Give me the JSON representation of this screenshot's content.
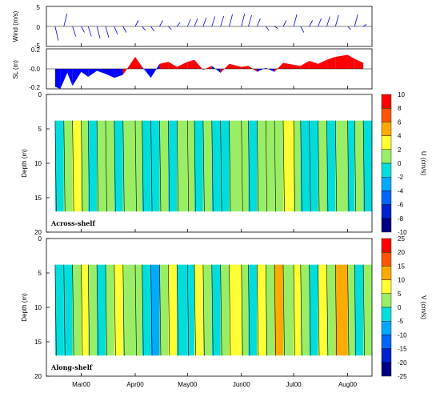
{
  "chart_data": [
    {
      "type": "line",
      "panel": "wind",
      "ylabel": "Wind (m/s)",
      "ylim": [
        -5,
        5
      ],
      "yticks": [
        "5",
        "0",
        "-5"
      ],
      "series_color": "#0000ff",
      "x": [
        "Feb15",
        "Feb20",
        "Feb25",
        "Mar01",
        "Mar05",
        "Mar10",
        "Mar15",
        "Mar20",
        "Mar25",
        "Apr01",
        "Apr05",
        "Apr10",
        "Apr15",
        "Apr20",
        "Apr25",
        "May01",
        "May05",
        "May10",
        "May15",
        "May20",
        "May25",
        "Jun01",
        "Jun05",
        "Jun10",
        "Jun15",
        "Jun20",
        "Jun25",
        "Jul01",
        "Jul05",
        "Jul10",
        "Jul15",
        "Jul20",
        "Jul25",
        "Aug01",
        "Aug05",
        "Aug10"
      ],
      "values": [
        -3.5,
        3.2,
        -2.5,
        -1.5,
        -2.5,
        -3.0,
        -2.8,
        -2.0,
        -1.5,
        1.5,
        -1.0,
        -1.2,
        1.5,
        -0.8,
        1.0,
        1.8,
        2.0,
        2.2,
        2.5,
        2.6,
        3.0,
        3.2,
        2.8,
        2.0,
        -1.0,
        -0.5,
        1.5,
        3.0,
        -1.5,
        1.5,
        2.0,
        2.5,
        2.8,
        -0.8,
        3.0,
        0.5
      ]
    },
    {
      "type": "area",
      "panel": "sea-level",
      "ylabel": "SL (m)",
      "ylim": [
        -0.2,
        0.2
      ],
      "yticks": [
        "0.2",
        "-0.0",
        "-0.2"
      ],
      "positive_color": "#ff0000",
      "negative_color": "#0000ff",
      "x": [
        "Feb15",
        "Feb18",
        "Feb22",
        "Feb25",
        "Mar01",
        "Mar05",
        "Mar10",
        "Mar15",
        "Mar20",
        "Mar25",
        "Apr01",
        "Apr05",
        "Apr10",
        "Apr15",
        "Apr20",
        "Apr25",
        "May01",
        "May05",
        "May10",
        "May15",
        "May20",
        "May25",
        "Jun01",
        "Jun05",
        "Jun10",
        "Jun15",
        "Jun20",
        "Jun25",
        "Jul01",
        "Jul05",
        "Jul10",
        "Jul15",
        "Jul20",
        "Jul25",
        "Aug01",
        "Aug05",
        "Aug10"
      ],
      "values": [
        -0.18,
        -0.2,
        -0.04,
        -0.17,
        -0.03,
        -0.08,
        -0.02,
        -0.05,
        -0.09,
        -0.06,
        0.12,
        0.02,
        -0.09,
        0.05,
        0.07,
        0.02,
        0.07,
        0.09,
        -0.01,
        0.03,
        -0.04,
        0.05,
        0.02,
        0.03,
        -0.03,
        0.01,
        -0.03,
        0.06,
        0.04,
        0.03,
        0.08,
        0.05,
        0.09,
        0.12,
        0.14,
        0.1,
        0.06
      ]
    },
    {
      "type": "heatmap",
      "panel": "across-shelf",
      "annotation": "Across-shelf",
      "ylabel": "Depth (m)",
      "ylim": [
        0,
        20
      ],
      "data_depth_range": [
        3.8,
        17
      ],
      "yticks": [
        "0",
        "5",
        "10",
        "15",
        "20"
      ],
      "colorbar_label": "U (cm/s)",
      "colorbar_ticks": [
        "10",
        "8",
        "6",
        "4",
        "2",
        "0",
        "-2",
        "-4",
        "-6",
        "-8",
        "-10"
      ],
      "colorbar_colors": [
        "#ff0000",
        "#ff5500",
        "#ffaa00",
        "#ffff33",
        "#99ee66",
        "#00dddd",
        "#00aaff",
        "#0066ff",
        "#0022cc",
        "#000080"
      ],
      "bands_x": [
        "Feb15",
        "Feb20",
        "Feb25",
        "Mar01",
        "Mar05",
        "Mar10",
        "Mar15",
        "Mar20",
        "Mar25",
        "Apr01",
        "Apr05",
        "Apr10",
        "Apr15",
        "Apr20",
        "Apr25",
        "May01",
        "May05",
        "May10",
        "May15",
        "May20",
        "May25",
        "Jun01",
        "Jun05",
        "Jun10",
        "Jun15",
        "Jun20",
        "Jun25",
        "Jul01",
        "Jul05",
        "Jul10",
        "Jul15",
        "Jul20",
        "Jul25",
        "Aug01",
        "Aug05",
        "Aug10"
      ],
      "bands_value": [
        -1,
        1,
        3,
        1,
        -1,
        1,
        0.5,
        -1,
        1,
        1.5,
        -1,
        -1,
        1,
        -1,
        1,
        1,
        -1,
        1,
        -1,
        -1,
        1,
        1,
        -1,
        1,
        0.5,
        1,
        3,
        1,
        -1,
        -1,
        1,
        -1,
        1,
        -1,
        1,
        -1
      ]
    },
    {
      "type": "heatmap",
      "panel": "along-shelf",
      "annotation": "Along-shelf",
      "ylabel": "Depth (m)",
      "ylim": [
        0,
        20
      ],
      "data_depth_range": [
        3.8,
        17
      ],
      "yticks": [
        "0",
        "5",
        "10",
        "15",
        "20"
      ],
      "colorbar_label": "V (cm/s)",
      "colorbar_ticks": [
        "25",
        "20",
        "15",
        "10",
        "5",
        "0",
        "-5",
        "-10",
        "-15",
        "-20",
        "-25"
      ],
      "colorbar_colors": [
        "#ff0000",
        "#ff5500",
        "#ffaa00",
        "#ffff33",
        "#99ee66",
        "#00dddd",
        "#00aaff",
        "#0066ff",
        "#0022cc",
        "#000080"
      ],
      "bands_x": [
        "Feb15",
        "Feb20",
        "Feb25",
        "Mar01",
        "Mar05",
        "Mar10",
        "Mar15",
        "Mar20",
        "Mar25",
        "Apr01",
        "Apr05",
        "Apr10",
        "Apr15",
        "Apr20",
        "Apr25",
        "May01",
        "May05",
        "May10",
        "May15",
        "May20",
        "May25",
        "Jun01",
        "Jun05",
        "Jun10",
        "Jun15",
        "Jun20",
        "Jun25",
        "Jul01",
        "Jul05",
        "Jul10",
        "Jul15",
        "Jul20",
        "Jul25",
        "Aug01",
        "Aug05",
        "Aug10"
      ],
      "bands_value": [
        -3,
        -3,
        3,
        7,
        3,
        -3,
        3,
        7,
        3,
        3,
        -3,
        -6,
        3,
        7,
        -3,
        -3,
        7,
        3,
        -3,
        3,
        7,
        3,
        -3,
        7,
        3,
        12,
        3,
        7,
        3,
        -3,
        7,
        3,
        12,
        3,
        -3,
        3
      ]
    }
  ],
  "time_axis": {
    "range": [
      "2000-02-10",
      "2000-08-15"
    ],
    "ticks": [
      {
        "label": "Mar00",
        "date": "2000-03-01"
      },
      {
        "label": "Apr00",
        "date": "2000-04-01"
      },
      {
        "label": "May00",
        "date": "2000-05-01"
      },
      {
        "label": "Jun00",
        "date": "2000-06-01"
      },
      {
        "label": "Jul00",
        "date": "2000-07-01"
      },
      {
        "label": "Aug00",
        "date": "2000-08-01"
      }
    ]
  }
}
